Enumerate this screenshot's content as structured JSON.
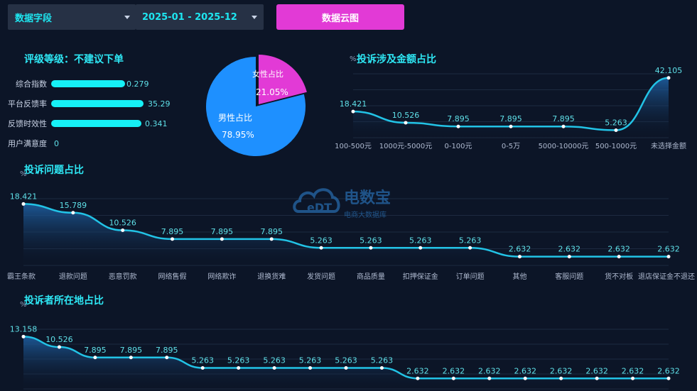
{
  "toolbar": {
    "field_select": "数据字段",
    "date_range": "2025-01 - 2025-12",
    "wordcloud_button": "数据云图"
  },
  "rating": {
    "title": "评级等级：不建议下单",
    "metrics": [
      {
        "label": "综合指数",
        "value": "0.279",
        "fraction": 0.279
      },
      {
        "label": "平台反馈率",
        "value": "35.29",
        "fraction": 1.0
      },
      {
        "label": "反馈时效性",
        "value": "0.341",
        "fraction": 0.98
      },
      {
        "label": "用户满意度",
        "value": "0",
        "fraction": 0
      }
    ]
  },
  "colors": {
    "accent": "#2ee8f5",
    "line": "#22c3e6",
    "pie_male": "#1e90ff",
    "pie_female": "#e23ad6",
    "button": "#e23ad6"
  },
  "watermark": {
    "brand": "电数宝",
    "sub": "电商大数据库",
    "logo_text": "eDT"
  },
  "chart_data": [
    {
      "id": "gender",
      "type": "pie",
      "slices": [
        {
          "label": "女性占比",
          "value": 21.05,
          "display": "21.05%"
        },
        {
          "label": "男性占比",
          "value": 78.95,
          "display": "78.95%"
        }
      ]
    },
    {
      "id": "amount",
      "type": "area",
      "title": "投诉涉及金额占比",
      "ylabel": "%",
      "ylim": [
        0,
        45
      ],
      "categories": [
        "100-500元",
        "1000元-5000元",
        "0-100元",
        "0-5万",
        "5000-10000元",
        "500-1000元",
        "未选择金额"
      ],
      "values": [
        18.421,
        10.526,
        7.895,
        7.895,
        7.895,
        5.263,
        42.105
      ],
      "labels": [
        "18.421",
        "10.526",
        "7.895",
        "7.895",
        "7.895",
        "5.263",
        "42.105"
      ]
    },
    {
      "id": "issues",
      "type": "area",
      "title": "投诉问题占比",
      "ylabel": "%",
      "ylim": [
        0,
        20
      ],
      "categories": [
        "霸王条款",
        "退款问题",
        "恶意罚款",
        "网络售假",
        "网络欺诈",
        "退换货难",
        "发货问题",
        "商品质量",
        "扣押保证金",
        "订单问题",
        "其他",
        "客服问题",
        "货不对板",
        "退店保证金不退还"
      ],
      "values": [
        18.421,
        15.789,
        10.526,
        7.895,
        7.895,
        7.895,
        5.263,
        5.263,
        5.263,
        5.263,
        2.632,
        2.632,
        2.632,
        2.632
      ],
      "labels": [
        "18.421",
        "15.789",
        "10.526",
        "7.895",
        "7.895",
        "7.895",
        "5.263",
        "5.263",
        "5.263",
        "5.263",
        "2.632",
        "2.632",
        "2.632",
        "2.632"
      ]
    },
    {
      "id": "location",
      "type": "area",
      "title": "投诉者所在地占比",
      "ylabel": "%",
      "ylim": [
        0,
        15
      ],
      "values": [
        13.158,
        10.526,
        7.895,
        7.895,
        7.895,
        5.263,
        5.263,
        5.263,
        5.263,
        5.263,
        5.263,
        2.632,
        2.632,
        2.632,
        2.632,
        2.632,
        2.632,
        2.632,
        2.632
      ],
      "labels": [
        "13.158",
        "10.526",
        "7.895",
        "7.895",
        "7.895",
        "5.263",
        "5.263",
        "5.263",
        "5.263",
        "5.263",
        "5.263",
        "2.632",
        "2.632",
        "2.632",
        "2.632",
        "2.632",
        "2.632",
        "2.632",
        "2.632"
      ]
    }
  ]
}
